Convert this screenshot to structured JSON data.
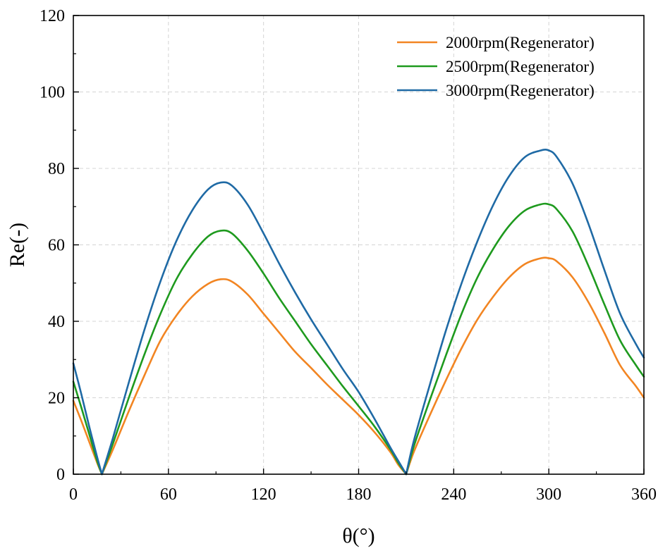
{
  "chart_data": {
    "type": "line",
    "title": "",
    "xlabel": "θ(°)",
    "ylabel": "Re(-)",
    "xlim": [
      0,
      360
    ],
    "ylim": [
      0,
      120
    ],
    "xticks": [
      0,
      60,
      120,
      180,
      240,
      300,
      360
    ],
    "yticks": [
      0,
      20,
      40,
      60,
      80,
      100,
      120
    ],
    "grid": true,
    "legend_position": "top-right",
    "series": [
      {
        "name": "2000rpm(Regenerator)",
        "color": "#F28522",
        "x": [
          0,
          5,
          10,
          15,
          18,
          25,
          35,
          45,
          55,
          65,
          75,
          85,
          93,
          100,
          110,
          120,
          130,
          140,
          150,
          160,
          170,
          180,
          190,
          200,
          205,
          210,
          215,
          225,
          235,
          245,
          255,
          265,
          275,
          285,
          295,
          300,
          305,
          315,
          325,
          335,
          345,
          355,
          360
        ],
        "y": [
          19.2,
          14,
          8.5,
          3,
          0,
          6.5,
          16.5,
          26,
          35,
          41.5,
          46.5,
          49.8,
          51,
          50.4,
          47,
          42,
          37,
          32,
          27.8,
          23.5,
          19.5,
          15.5,
          11,
          5.8,
          2.5,
          0,
          6,
          15.5,
          24.5,
          33,
          40.5,
          46.5,
          51.5,
          55,
          56.5,
          56.5,
          55.7,
          51.5,
          45,
          37,
          28.5,
          23,
          20
        ]
      },
      {
        "name": "2500rpm(Regenerator)",
        "color": "#1E9A1E",
        "x": [
          0,
          5,
          10,
          15,
          18,
          25,
          35,
          45,
          55,
          65,
          75,
          85,
          93,
          100,
          110,
          120,
          130,
          140,
          150,
          160,
          170,
          180,
          190,
          200,
          205,
          210,
          215,
          225,
          235,
          245,
          255,
          265,
          275,
          285,
          295,
          300,
          305,
          315,
          325,
          335,
          345,
          355,
          360
        ],
        "y": [
          24.2,
          17.5,
          10.5,
          3.5,
          0,
          8,
          20,
          31.5,
          42,
          51,
          57.5,
          62.2,
          63.7,
          63,
          58.5,
          52.5,
          46,
          40,
          34,
          28.5,
          23,
          17.8,
          12.5,
          6.5,
          3,
          0,
          7.5,
          19.5,
          31,
          42,
          51.5,
          59,
          65,
          69,
          70.6,
          70.6,
          69.3,
          63.5,
          54.5,
          44.5,
          35,
          28.5,
          25.5
        ]
      },
      {
        "name": "3000rpm(Regenerator)",
        "color": "#1F6AA5",
        "x": [
          0,
          5,
          10,
          15,
          18,
          25,
          35,
          45,
          55,
          65,
          75,
          85,
          93,
          100,
          110,
          120,
          130,
          140,
          150,
          160,
          170,
          180,
          190,
          200,
          205,
          210,
          215,
          225,
          235,
          245,
          255,
          265,
          275,
          285,
          295,
          300,
          305,
          315,
          325,
          335,
          345,
          355,
          360
        ],
        "y": [
          29,
          21,
          12.5,
          4.5,
          0,
          9.5,
          24,
          38,
          50.5,
          61,
          69,
          74.5,
          76.3,
          75.5,
          70.5,
          63,
          55,
          47.5,
          40.5,
          34,
          27.5,
          21.5,
          14.5,
          7,
          3.5,
          0,
          9,
          23.5,
          37.5,
          50,
          61,
          70.5,
          78,
          83,
          84.7,
          84.7,
          83,
          76,
          65.5,
          53.5,
          42,
          34,
          30.5
        ]
      }
    ]
  }
}
